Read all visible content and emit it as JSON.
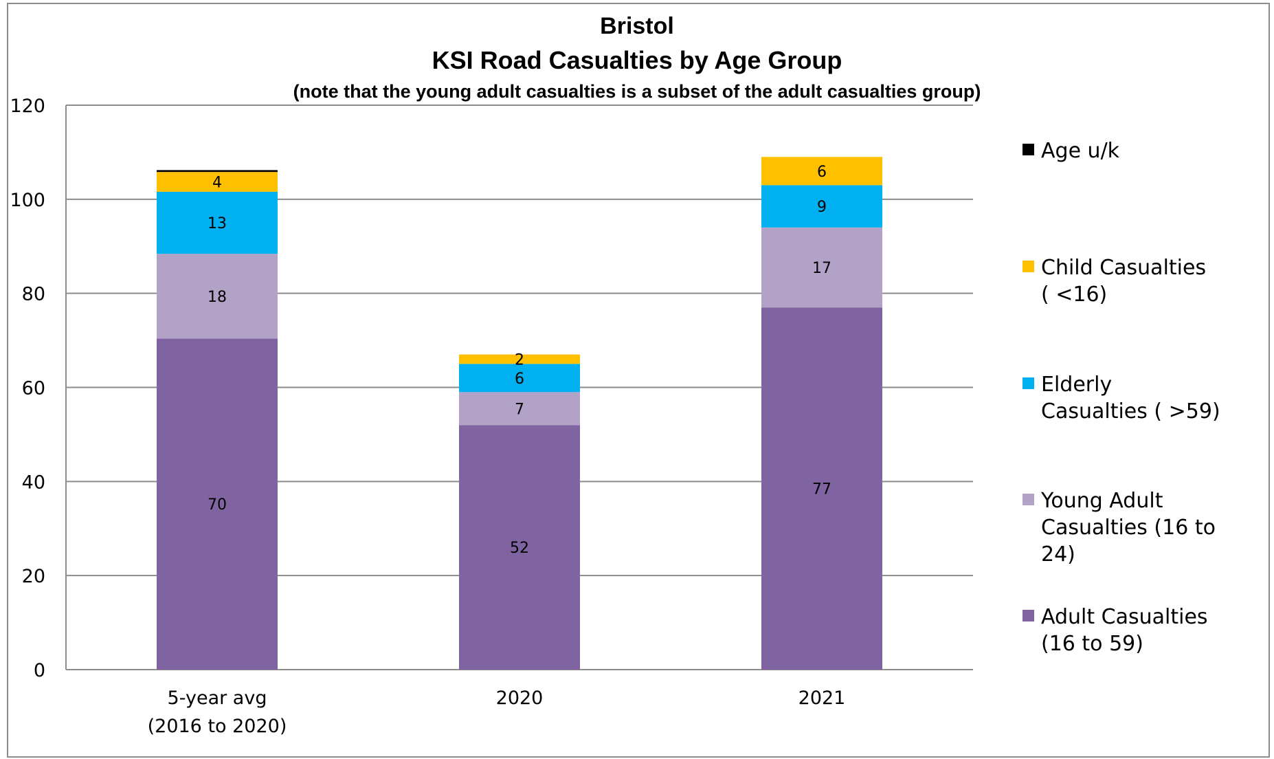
{
  "chart_data": {
    "type": "bar",
    "stacked": true,
    "title": "Bristol",
    "subtitle": "KSI Road Casualties by Age Group",
    "note": "(note that the young adult casualties is a subset of the adult casualties group)",
    "xlabel": "",
    "ylabel": "",
    "ylim": [
      0,
      120
    ],
    "yticks": [
      0,
      20,
      40,
      60,
      80,
      100,
      120
    ],
    "grid": true,
    "legend_position": "right",
    "categories": [
      [
        "5-year avg",
        "(2016 to 2020)"
      ],
      [
        "2020"
      ],
      [
        "2021"
      ]
    ],
    "series": [
      {
        "name": [
          "Adult Casualties",
          "(16 to 59)"
        ],
        "color": "#8064a2",
        "values": [
          70.4,
          52,
          77
        ],
        "labels": [
          "70",
          "52",
          "77"
        ]
      },
      {
        "name": [
          "Young Adult",
          "Casualties (16 to",
          "24)"
        ],
        "color": "#b3a2c7",
        "values": [
          18,
          7,
          17
        ],
        "labels": [
          "18",
          "7",
          "17"
        ]
      },
      {
        "name": [
          "Elderly",
          "Casualties ( >59)"
        ],
        "color": "#00b0f0",
        "values": [
          13.2,
          6,
          9
        ],
        "labels": [
          "13",
          "6",
          "9"
        ]
      },
      {
        "name": [
          "Child Casualties",
          "( <16)"
        ],
        "color": "#ffc000",
        "values": [
          4.2,
          2,
          6
        ],
        "labels": [
          "4",
          "2",
          "6"
        ]
      },
      {
        "name": [
          "Age u/k"
        ],
        "color": "#000000",
        "values": [
          0.4,
          0,
          0
        ],
        "labels": [
          "",
          "",
          ""
        ]
      }
    ]
  }
}
